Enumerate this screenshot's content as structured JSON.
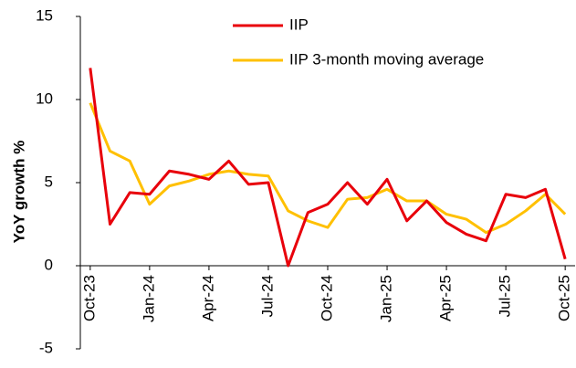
{
  "chart_data": {
    "type": "line",
    "y_label": "YoY growth %",
    "categories": [
      "Oct-23",
      null,
      null,
      "Jan-24",
      null,
      null,
      "Apr-24",
      null,
      null,
      "Jul-24",
      null,
      null,
      "Oct-24",
      null,
      null,
      "Jan-25",
      null,
      null,
      "Apr-25",
      null,
      null,
      "Jul-25",
      null,
      null,
      "Oct-25"
    ],
    "series": [
      {
        "name": "IIP",
        "color": "#e8000b",
        "values": [
          11.9,
          2.5,
          4.4,
          4.3,
          5.7,
          5.5,
          5.2,
          6.3,
          4.9,
          5.0,
          0.0,
          3.2,
          3.7,
          5.0,
          3.7,
          5.2,
          2.7,
          3.9,
          2.6,
          1.9,
          1.5,
          4.3,
          4.1,
          4.6,
          0.4
        ]
      },
      {
        "name": "IIP 3-month moving average",
        "color": "#ffc000",
        "values": [
          9.8,
          6.9,
          6.3,
          3.7,
          4.8,
          5.1,
          5.5,
          5.7,
          5.5,
          5.4,
          3.3,
          2.7,
          2.3,
          4.0,
          4.1,
          4.6,
          3.9,
          3.9,
          3.1,
          2.8,
          2.0,
          2.5,
          3.3,
          4.3,
          3.1
        ]
      }
    ],
    "ylim": [
      -5,
      15
    ],
    "yticks": [
      -5,
      0,
      5,
      10,
      15
    ],
    "grid": false,
    "legend": "top"
  }
}
